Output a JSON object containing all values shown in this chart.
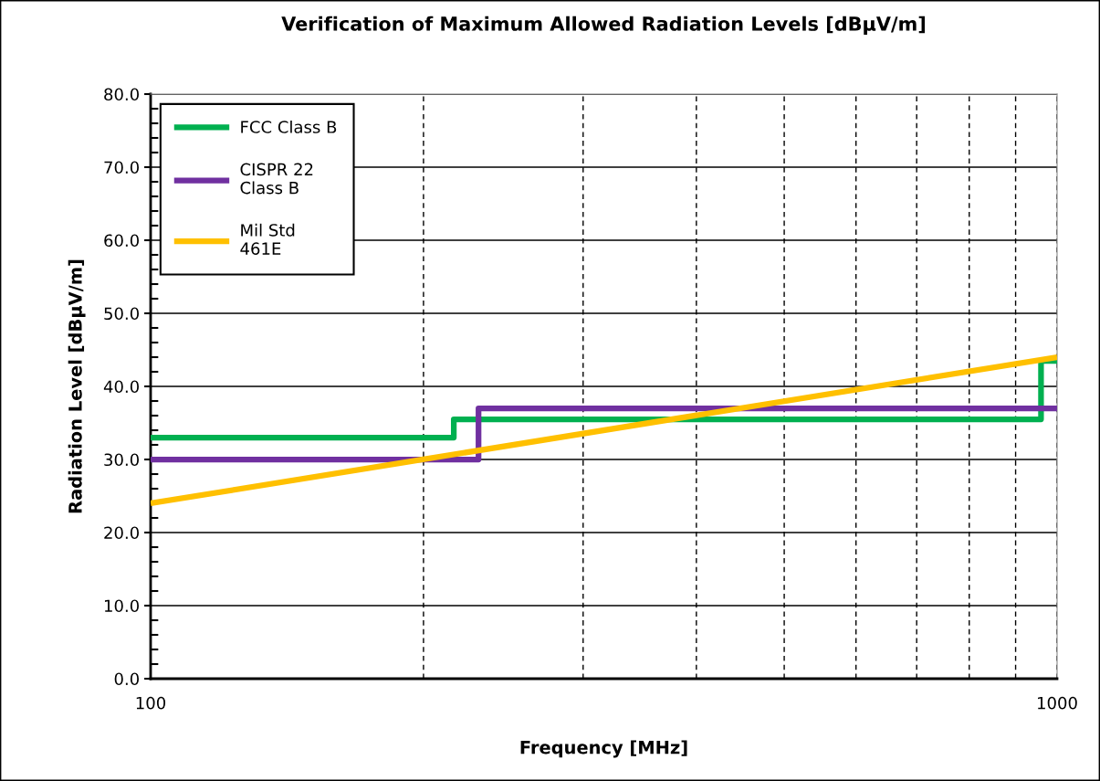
{
  "chart_data": {
    "type": "line",
    "title": "Verification of Maximum Allowed Radiation Levels [dBµV/m]",
    "xlabel": "Frequency [MHz]",
    "ylabel": "Radiation Level [dBµV/m]",
    "series": [
      {
        "name": "FCC Class B",
        "color": "#00b050",
        "x": [
          100,
          216,
          216,
          960,
          960,
          1000
        ],
        "values": [
          33,
          33,
          35.5,
          35.5,
          43.5,
          43.5
        ]
      },
      {
        "name": "CISPR 22\nClass B",
        "color": "#7030a0",
        "x": [
          100,
          230,
          230,
          1000
        ],
        "values": [
          30,
          30,
          37,
          37
        ]
      },
      {
        "name": "Mil Std\n461E",
        "color": "#ffc000",
        "x": [
          100,
          1000
        ],
        "values": [
          24,
          44
        ]
      }
    ],
    "log": "x",
    "xlim": [
      100,
      1000
    ],
    "xticks": [
      100,
      {
        "value": 200,
        "label": null
      },
      {
        "value": 300,
        "label": null
      },
      {
        "value": 400,
        "label": null
      },
      {
        "value": 500,
        "label": null
      },
      {
        "value": 600,
        "label": null
      },
      {
        "value": 700,
        "label": null
      },
      {
        "value": 800,
        "label": null
      },
      {
        "value": 900,
        "label": null
      },
      1000
    ],
    "ylim": [
      0,
      80
    ],
    "yticks": [
      {
        "value": 0,
        "label": "0.0"
      },
      {
        "value": 2,
        "label": null
      },
      {
        "value": 4,
        "label": null
      },
      {
        "value": 6,
        "label": null
      },
      {
        "value": 8,
        "label": null
      },
      {
        "value": 10,
        "label": "10.0"
      },
      {
        "value": 12,
        "label": null
      },
      {
        "value": 14,
        "label": null
      },
      {
        "value": 16,
        "label": null
      },
      {
        "value": 18,
        "label": null
      },
      {
        "value": 20,
        "label": "20.0"
      },
      {
        "value": 22,
        "label": null
      },
      {
        "value": 24,
        "label": null
      },
      {
        "value": 26,
        "label": null
      },
      {
        "value": 28,
        "label": null
      },
      {
        "value": 30,
        "label": "30.0"
      },
      {
        "value": 32,
        "label": null
      },
      {
        "value": 34,
        "label": null
      },
      {
        "value": 36,
        "label": null
      },
      {
        "value": 38,
        "label": null
      },
      {
        "value": 40,
        "label": "40.0"
      },
      {
        "value": 42,
        "label": null
      },
      {
        "value": 44,
        "label": null
      },
      {
        "value": 46,
        "label": null
      },
      {
        "value": 48,
        "label": null
      },
      {
        "value": 50,
        "label": "50.0"
      },
      {
        "value": 52,
        "label": null
      },
      {
        "value": 54,
        "label": null
      },
      {
        "value": 56,
        "label": null
      },
      {
        "value": 58,
        "label": null
      },
      {
        "value": 60,
        "label": "60.0"
      },
      {
        "value": 62,
        "label": null
      },
      {
        "value": 64,
        "label": null
      },
      {
        "value": 66,
        "label": null
      },
      {
        "value": 68,
        "label": null
      },
      {
        "value": 70,
        "label": "70.0"
      },
      {
        "value": 72,
        "label": null
      },
      {
        "value": 74,
        "label": null
      },
      {
        "value": 76,
        "label": null
      },
      {
        "value": 78,
        "label": null
      },
      {
        "value": 80,
        "label": "80.0"
      }
    ],
    "grid": true,
    "legend": "top left",
    "line_style": "solid",
    "marker": "none"
  }
}
